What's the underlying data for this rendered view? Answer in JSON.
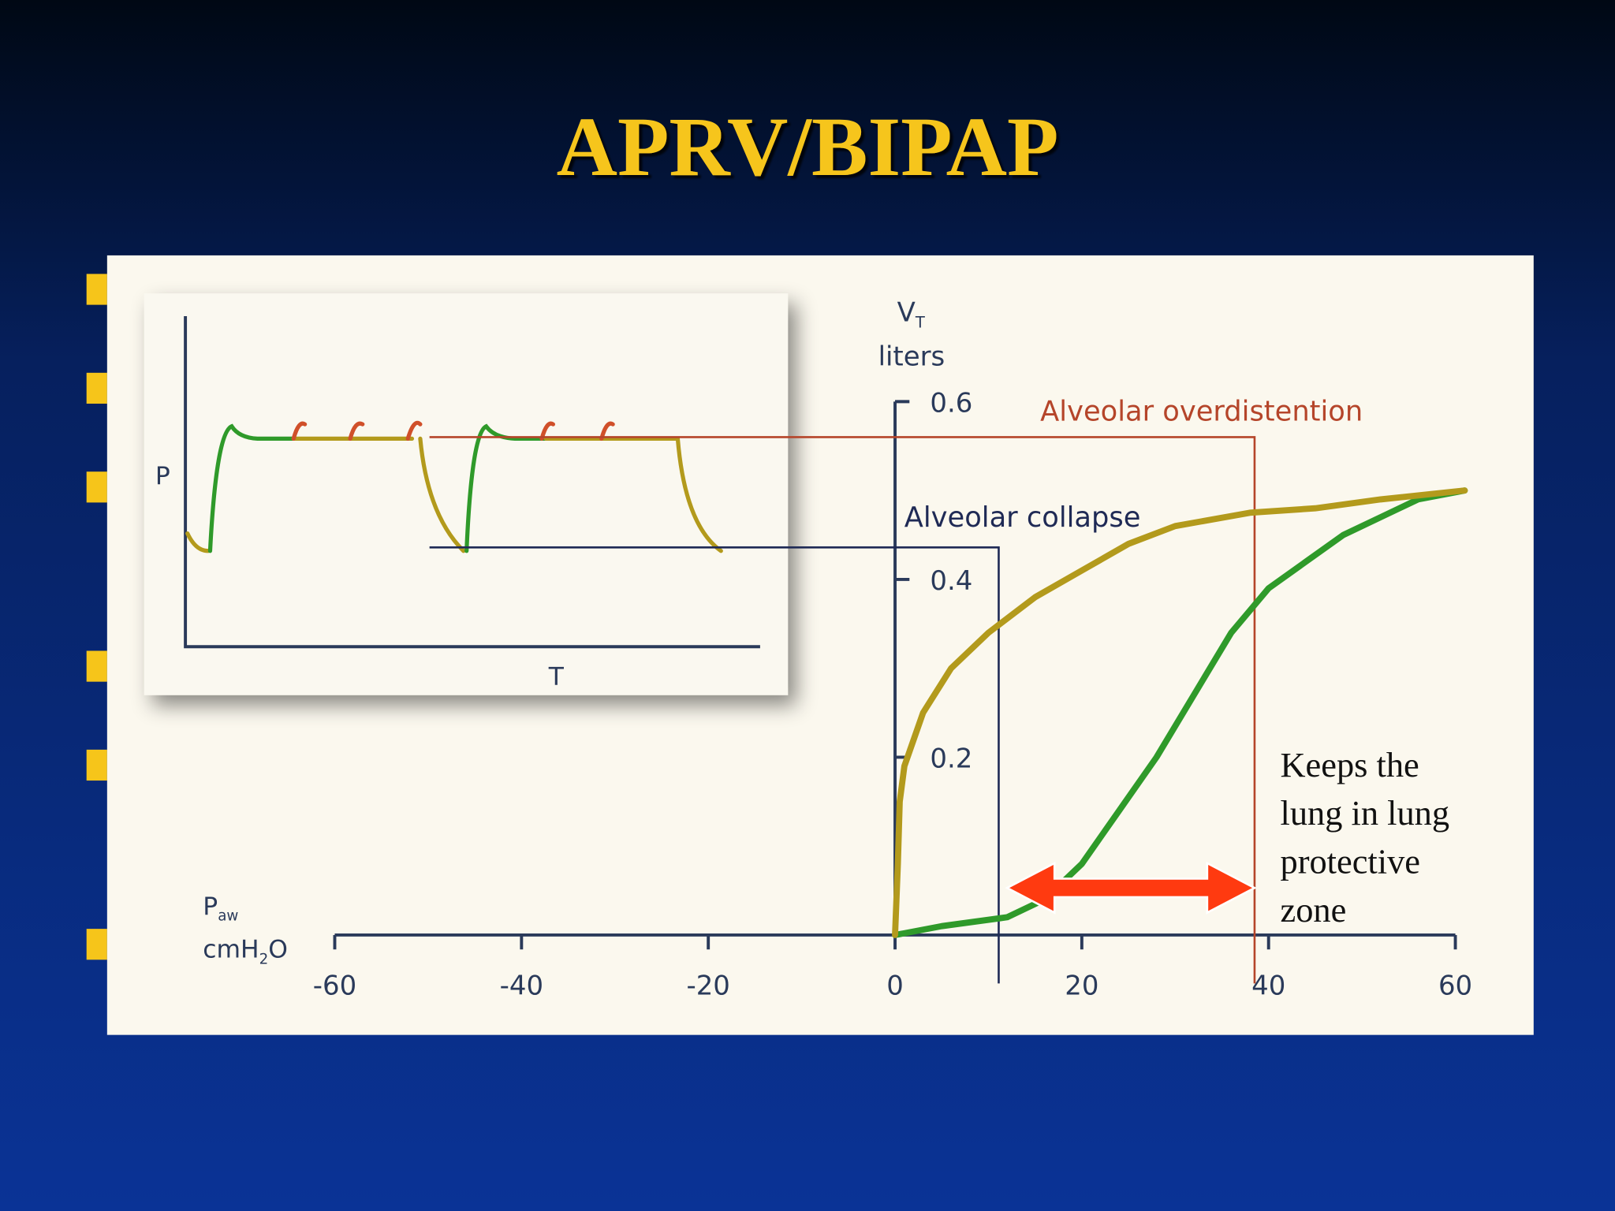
{
  "title": "APRV/BIPAP",
  "chart_data": {
    "type": "line",
    "y_label": {
      "main": "V",
      "sub": "T",
      "unit": "liters"
    },
    "x_label": {
      "main": "P",
      "sub": "aw",
      "unit_parts": [
        "cmH",
        "2",
        "O"
      ]
    },
    "xlim": [
      -60,
      60
    ],
    "ylim": [
      0,
      0.6
    ],
    "xticks": [
      -60,
      -40,
      -20,
      0,
      20,
      40,
      60
    ],
    "yticks": [
      0.2,
      0.4,
      0.6
    ],
    "series": [
      {
        "color": "#2f9a2a",
        "x": [
          0,
          5,
          12,
          16,
          20,
          24,
          28,
          32,
          36,
          40,
          44,
          48,
          52,
          56,
          61
        ],
        "values": [
          0,
          0.01,
          0.02,
          0.04,
          0.08,
          0.14,
          0.2,
          0.27,
          0.34,
          0.39,
          0.42,
          0.45,
          0.47,
          0.49,
          0.5
        ]
      },
      {
        "color": "#b39a1c",
        "x": [
          0,
          0.3,
          0.5,
          1,
          3,
          6,
          10,
          15,
          20,
          25,
          30,
          38,
          45,
          52,
          61
        ],
        "values": [
          0,
          0.08,
          0.15,
          0.19,
          0.25,
          0.3,
          0.34,
          0.38,
          0.41,
          0.44,
          0.46,
          0.475,
          0.48,
          0.49,
          0.5
        ]
      }
    ],
    "annotations": [
      {
        "text": "Alveolar overdistention",
        "x": 38.5,
        "y": 0.56,
        "color": "#b5452a"
      },
      {
        "text": "Alveolar collapse",
        "x": 11.1,
        "y": 0.436,
        "color": "#1f2a55"
      }
    ],
    "arrow": {
      "from": 12,
      "to": 38.5,
      "y": 0.053,
      "color": "#ff3a10"
    },
    "note_lines": [
      "Keeps the",
      "lung in lung",
      "protective",
      "zone"
    ]
  },
  "inset": {
    "y_label": "P",
    "x_label": "T"
  }
}
